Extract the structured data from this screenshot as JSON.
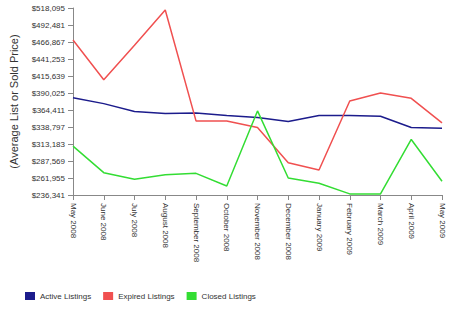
{
  "chart_data": {
    "type": "line",
    "y_label": "(Average List or Sold Price)",
    "categories": [
      "May 2008",
      "June 2008",
      "July 2008",
      "August 2008",
      "September 2008",
      "October 2008",
      "November 2008",
      "December 2008",
      "January 2009",
      "February 2009",
      "March 2009",
      "April 2009",
      "May 2009"
    ],
    "series": [
      {
        "name": "Active Listings",
        "color": "#1c1c8c",
        "values": [
          383000,
          374000,
          362000,
          359000,
          360000,
          356000,
          353000,
          347000,
          356000,
          356000,
          355000,
          338000,
          337000
        ]
      },
      {
        "name": "Expired Listings",
        "color": "#f05050",
        "values": [
          470000,
          410000,
          462000,
          515000,
          348000,
          348000,
          338000,
          285000,
          274000,
          378000,
          390000,
          382000,
          345000
        ]
      },
      {
        "name": "Closed Listings",
        "color": "#33dd33",
        "values": [
          310000,
          270000,
          260000,
          267000,
          269000,
          250000,
          363000,
          262000,
          254000,
          238000,
          238000,
          320000,
          257000
        ]
      }
    ],
    "ylim": [
      236341,
      518095
    ],
    "yticks": [
      {
        "value": 236341,
        "label": "$236,341"
      },
      {
        "value": 261955,
        "label": "$261,955"
      },
      {
        "value": 287569,
        "label": "$287,569"
      },
      {
        "value": 313183,
        "label": "$313,183"
      },
      {
        "value": 338797,
        "label": "$338,797"
      },
      {
        "value": 364411,
        "label": "$364,411"
      },
      {
        "value": 390025,
        "label": "$390,025"
      },
      {
        "value": 415639,
        "label": "$415,639"
      },
      {
        "value": 441253,
        "label": "$441,253"
      },
      {
        "value": 466867,
        "label": "$466,867"
      },
      {
        "value": 492481,
        "label": "$492,481"
      },
      {
        "value": 518095,
        "label": "$518,095"
      }
    ],
    "grid": false,
    "legend": "bottom"
  }
}
